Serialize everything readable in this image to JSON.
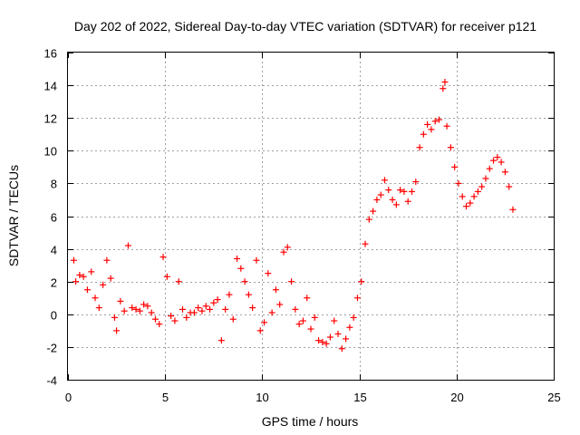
{
  "chart_data": {
    "type": "scatter",
    "title": "Day 202 of 2022, Sidereal Day-to-day VTEC variation (SDTVAR) for receiver p121",
    "xlabel": "GPS time / hours",
    "ylabel": "SDTVAR / TECUs",
    "xlim": [
      0,
      25
    ],
    "ylim": [
      -4,
      16
    ],
    "xticks": [
      0,
      5,
      10,
      15,
      20,
      25
    ],
    "xtick_labels": [
      "0",
      "5",
      "10",
      "15",
      "20",
      "25"
    ],
    "yticks": [
      -4,
      -2,
      0,
      2,
      4,
      6,
      8,
      10,
      12,
      14,
      16
    ],
    "ytick_labels": [
      "-4",
      "-2",
      "0",
      "2",
      "4",
      "6",
      "8",
      "10",
      "12",
      "14",
      "16"
    ],
    "grid": true,
    "marker": "plus",
    "color": "#ff0000",
    "series": [
      {
        "name": "p121",
        "x": [
          0.3,
          0.4,
          0.6,
          0.8,
          1.0,
          1.2,
          1.4,
          1.6,
          1.8,
          2.0,
          2.2,
          2.4,
          2.5,
          2.7,
          2.9,
          3.1,
          3.3,
          3.5,
          3.7,
          3.9,
          4.1,
          4.3,
          4.5,
          4.7,
          4.9,
          5.1,
          5.3,
          5.5,
          5.7,
          5.9,
          6.1,
          6.3,
          6.5,
          6.7,
          6.9,
          7.1,
          7.3,
          7.5,
          7.7,
          7.9,
          8.1,
          8.3,
          8.5,
          8.7,
          8.9,
          9.1,
          9.3,
          9.5,
          9.7,
          9.9,
          10.1,
          10.3,
          10.5,
          10.7,
          10.9,
          11.1,
          11.3,
          11.5,
          11.7,
          11.9,
          12.1,
          12.3,
          12.5,
          12.7,
          12.9,
          13.1,
          13.3,
          13.5,
          13.7,
          13.9,
          14.1,
          14.3,
          14.5,
          14.7,
          14.9,
          15.1,
          15.3,
          15.5,
          15.7,
          15.9,
          16.1,
          16.3,
          16.5,
          16.7,
          16.9,
          17.1,
          17.3,
          17.5,
          17.7,
          17.9,
          18.1,
          18.3,
          18.5,
          18.7,
          18.9,
          19.1,
          19.3,
          19.4,
          19.5,
          19.7,
          19.9,
          20.1,
          20.3,
          20.5,
          20.7,
          20.9,
          21.1,
          21.3,
          21.5,
          21.7,
          21.9,
          22.1,
          22.3,
          22.5,
          22.7,
          22.9
        ],
        "y": [
          3.3,
          2.0,
          2.4,
          2.3,
          1.5,
          2.6,
          1.0,
          0.4,
          1.8,
          3.3,
          2.2,
          -0.2,
          -1.0,
          0.8,
          0.2,
          4.2,
          0.4,
          0.3,
          0.2,
          0.6,
          0.5,
          0.1,
          -0.3,
          -0.6,
          3.5,
          2.3,
          -0.1,
          -0.4,
          2.0,
          0.3,
          -0.2,
          0.1,
          0.1,
          0.4,
          0.2,
          0.5,
          0.3,
          0.7,
          0.9,
          -1.6,
          0.3,
          1.2,
          -0.3,
          3.4,
          2.8,
          2.0,
          1.2,
          0.4,
          3.3,
          -1.0,
          -0.5,
          2.5,
          0.1,
          1.5,
          0.6,
          3.8,
          4.1,
          2.0,
          0.3,
          -0.6,
          -0.4,
          1.0,
          -0.9,
          -0.2,
          -1.6,
          -1.7,
          -1.8,
          -1.4,
          -0.4,
          -1.2,
          -2.1,
          -1.5,
          -0.8,
          -0.2,
          1.0,
          2.0,
          4.3,
          5.8,
          6.3,
          7.0,
          7.3,
          8.2,
          7.6,
          7.0,
          6.7,
          7.6,
          7.5,
          6.9,
          7.5,
          8.1,
          10.2,
          11.0,
          11.6,
          11.3,
          11.8,
          11.9,
          13.8,
          14.2,
          11.5,
          10.2,
          9.0,
          8.0,
          7.2,
          6.6,
          6.8,
          7.2,
          7.5,
          7.8,
          8.3,
          8.9,
          9.4,
          9.6,
          9.3,
          8.7,
          7.8,
          6.4
        ]
      }
    ]
  }
}
